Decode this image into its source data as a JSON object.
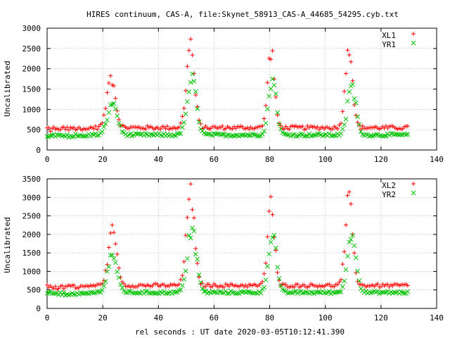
{
  "title": "HIRES continuum, CAS-A, file:Skynet_58913_CAS-A_44685_54295.cyb.txt",
  "xlabel": "rel seconds : UT date 2020-03-05T10:12:41.390",
  "colors": {
    "x_series": "#ff0000",
    "y_series": "#00c000",
    "axis": "#000000",
    "grid": "#a0a0a0"
  },
  "chart_data": [
    {
      "type": "scatter",
      "ylabel": "Uncalibrated",
      "xlim": [
        0,
        140
      ],
      "ylim": [
        0,
        3000
      ],
      "xticks": [
        0,
        20,
        40,
        60,
        80,
        100,
        120,
        140
      ],
      "yticks": [
        0,
        500,
        1000,
        1500,
        2000,
        2500,
        3000
      ],
      "grid": true,
      "legend_position": "top-right",
      "x_range": [
        0,
        130
      ],
      "x_step": 0.6,
      "series": [
        {
          "name": "XL1",
          "marker": "plus",
          "color": "#ff0000",
          "baseline": 550,
          "noise": 45,
          "peaks": [
            {
              "x": 23,
              "height": 1200,
              "width": 1.5
            },
            {
              "x": 51.5,
              "height": 2100,
              "width": 1.4
            },
            {
              "x": 80.5,
              "height": 1850,
              "width": 1.2
            },
            {
              "x": 108.5,
              "height": 1950,
              "width": 1.3
            }
          ]
        },
        {
          "name": "YR1",
          "marker": "cross",
          "color": "#00c000",
          "baseline": 370,
          "noise": 35,
          "peaks": [
            {
              "x": 23.5,
              "height": 800,
              "width": 1.7
            },
            {
              "x": 52,
              "height": 1400,
              "width": 1.6
            },
            {
              "x": 81,
              "height": 1350,
              "width": 1.4
            },
            {
              "x": 109.5,
              "height": 1200,
              "width": 1.5
            }
          ]
        }
      ]
    },
    {
      "type": "scatter",
      "ylabel": "Uncalibrated",
      "xlim": [
        0,
        140
      ],
      "ylim": [
        0,
        3500
      ],
      "xticks": [
        0,
        20,
        40,
        60,
        80,
        100,
        120,
        140
      ],
      "yticks": [
        0,
        500,
        1000,
        1500,
        2000,
        2500,
        3000,
        3500
      ],
      "grid": true,
      "legend_position": "top-right",
      "x_range": [
        0,
        130
      ],
      "x_step": 0.6,
      "series": [
        {
          "name": "XL2",
          "marker": "plus",
          "color": "#ff0000",
          "baseline": 620,
          "noise": 45,
          "peaks": [
            {
              "x": 23.5,
              "height": 1500,
              "width": 1.5
            },
            {
              "x": 51.5,
              "height": 2550,
              "width": 1.4
            },
            {
              "x": 80.5,
              "height": 2250,
              "width": 1.2
            },
            {
              "x": 108.5,
              "height": 2350,
              "width": 1.3
            }
          ]
        },
        {
          "name": "YR2",
          "marker": "cross",
          "color": "#00c000",
          "baseline": 430,
          "noise": 35,
          "peaks": [
            {
              "x": 23.5,
              "height": 1000,
              "width": 1.7
            },
            {
              "x": 52,
              "height": 1700,
              "width": 1.6
            },
            {
              "x": 81,
              "height": 1550,
              "width": 1.4
            },
            {
              "x": 109.5,
              "height": 1600,
              "width": 1.5
            }
          ]
        }
      ]
    }
  ]
}
